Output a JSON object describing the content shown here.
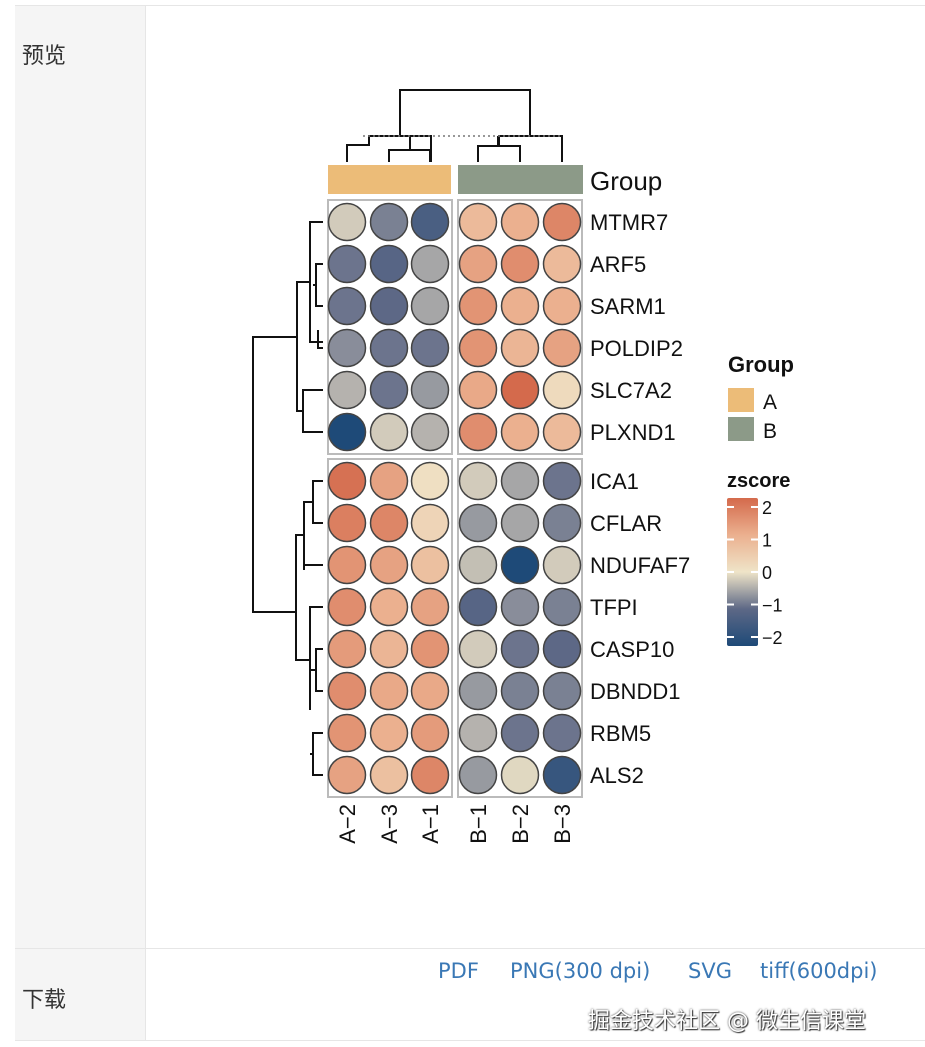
{
  "sidebar": {
    "preview_label": "预览",
    "download_label": "下载"
  },
  "downloads": [
    "PDF",
    "PNG(300 dpi)",
    "SVG",
    "tiff(600dpi)"
  ],
  "watermark": "掘金技术社区 @ 微生信课堂",
  "chart_data": {
    "type": "heatmap",
    "columns": [
      "A−2",
      "A−3",
      "A−1",
      "B−1",
      "B−2",
      "B−3"
    ],
    "column_groups": [
      "A",
      "A",
      "A",
      "B",
      "B",
      "B"
    ],
    "rows": [
      "MTMR7",
      "ARF5",
      "SARM1",
      "POLDIP2",
      "SLC7A2",
      "PLXND1",
      "ICA1",
      "CFLAR",
      "NDUFAF7",
      "TFPI",
      "CASP10",
      "DBNDD1",
      "RBM5",
      "ALS2"
    ],
    "values": [
      [
        -0.2,
        -0.8,
        -1.3,
        0.8,
        1.0,
        1.6
      ],
      [
        -0.9,
        -1.1,
        -0.5,
        1.2,
        1.5,
        0.8
      ],
      [
        -0.9,
        -1.0,
        -0.5,
        1.4,
        1.0,
        1.0
      ],
      [
        -0.7,
        -0.9,
        -0.9,
        1.4,
        0.9,
        1.2
      ],
      [
        -0.4,
        -0.9,
        -0.6,
        1.1,
        2.0,
        0.2
      ],
      [
        -2.1,
        -0.2,
        -0.4,
        1.5,
        1.0,
        0.8
      ],
      [
        1.9,
        1.2,
        0.1,
        -0.2,
        -0.5,
        -0.9
      ],
      [
        1.7,
        1.6,
        0.3,
        -0.6,
        -0.5,
        -0.8
      ],
      [
        1.4,
        1.2,
        0.7,
        -0.3,
        -2.0,
        -0.2
      ],
      [
        1.5,
        1.0,
        1.2,
        -1.1,
        -0.7,
        -0.8
      ],
      [
        1.3,
        0.9,
        1.4,
        -0.2,
        -0.9,
        -1.0
      ],
      [
        1.5,
        1.1,
        1.1,
        -0.6,
        -0.8,
        -0.8
      ],
      [
        1.4,
        1.0,
        1.3,
        -0.4,
        -0.9,
        -0.9
      ],
      [
        1.2,
        0.7,
        1.6,
        -0.6,
        -0.1,
        -1.6
      ]
    ],
    "annotation_title": "Group",
    "legend": {
      "group_title": "Group",
      "groups": [
        {
          "name": "A",
          "color": "#ecbc78"
        },
        {
          "name": "B",
          "color": "#8c9a88"
        }
      ],
      "scale_title": "zscore",
      "scale_ticks": [
        "2",
        "1",
        "0",
        "−1",
        "−2"
      ],
      "scale_values": [
        2,
        1,
        0,
        -1,
        -2
      ],
      "colors": {
        "-2": "#1e4a78",
        "-1": "#5d6886",
        "0": "#efe4c8",
        "1": "#ebb08f",
        "2": "#d46a4c"
      }
    },
    "range": [
      -2,
      2
    ]
  }
}
